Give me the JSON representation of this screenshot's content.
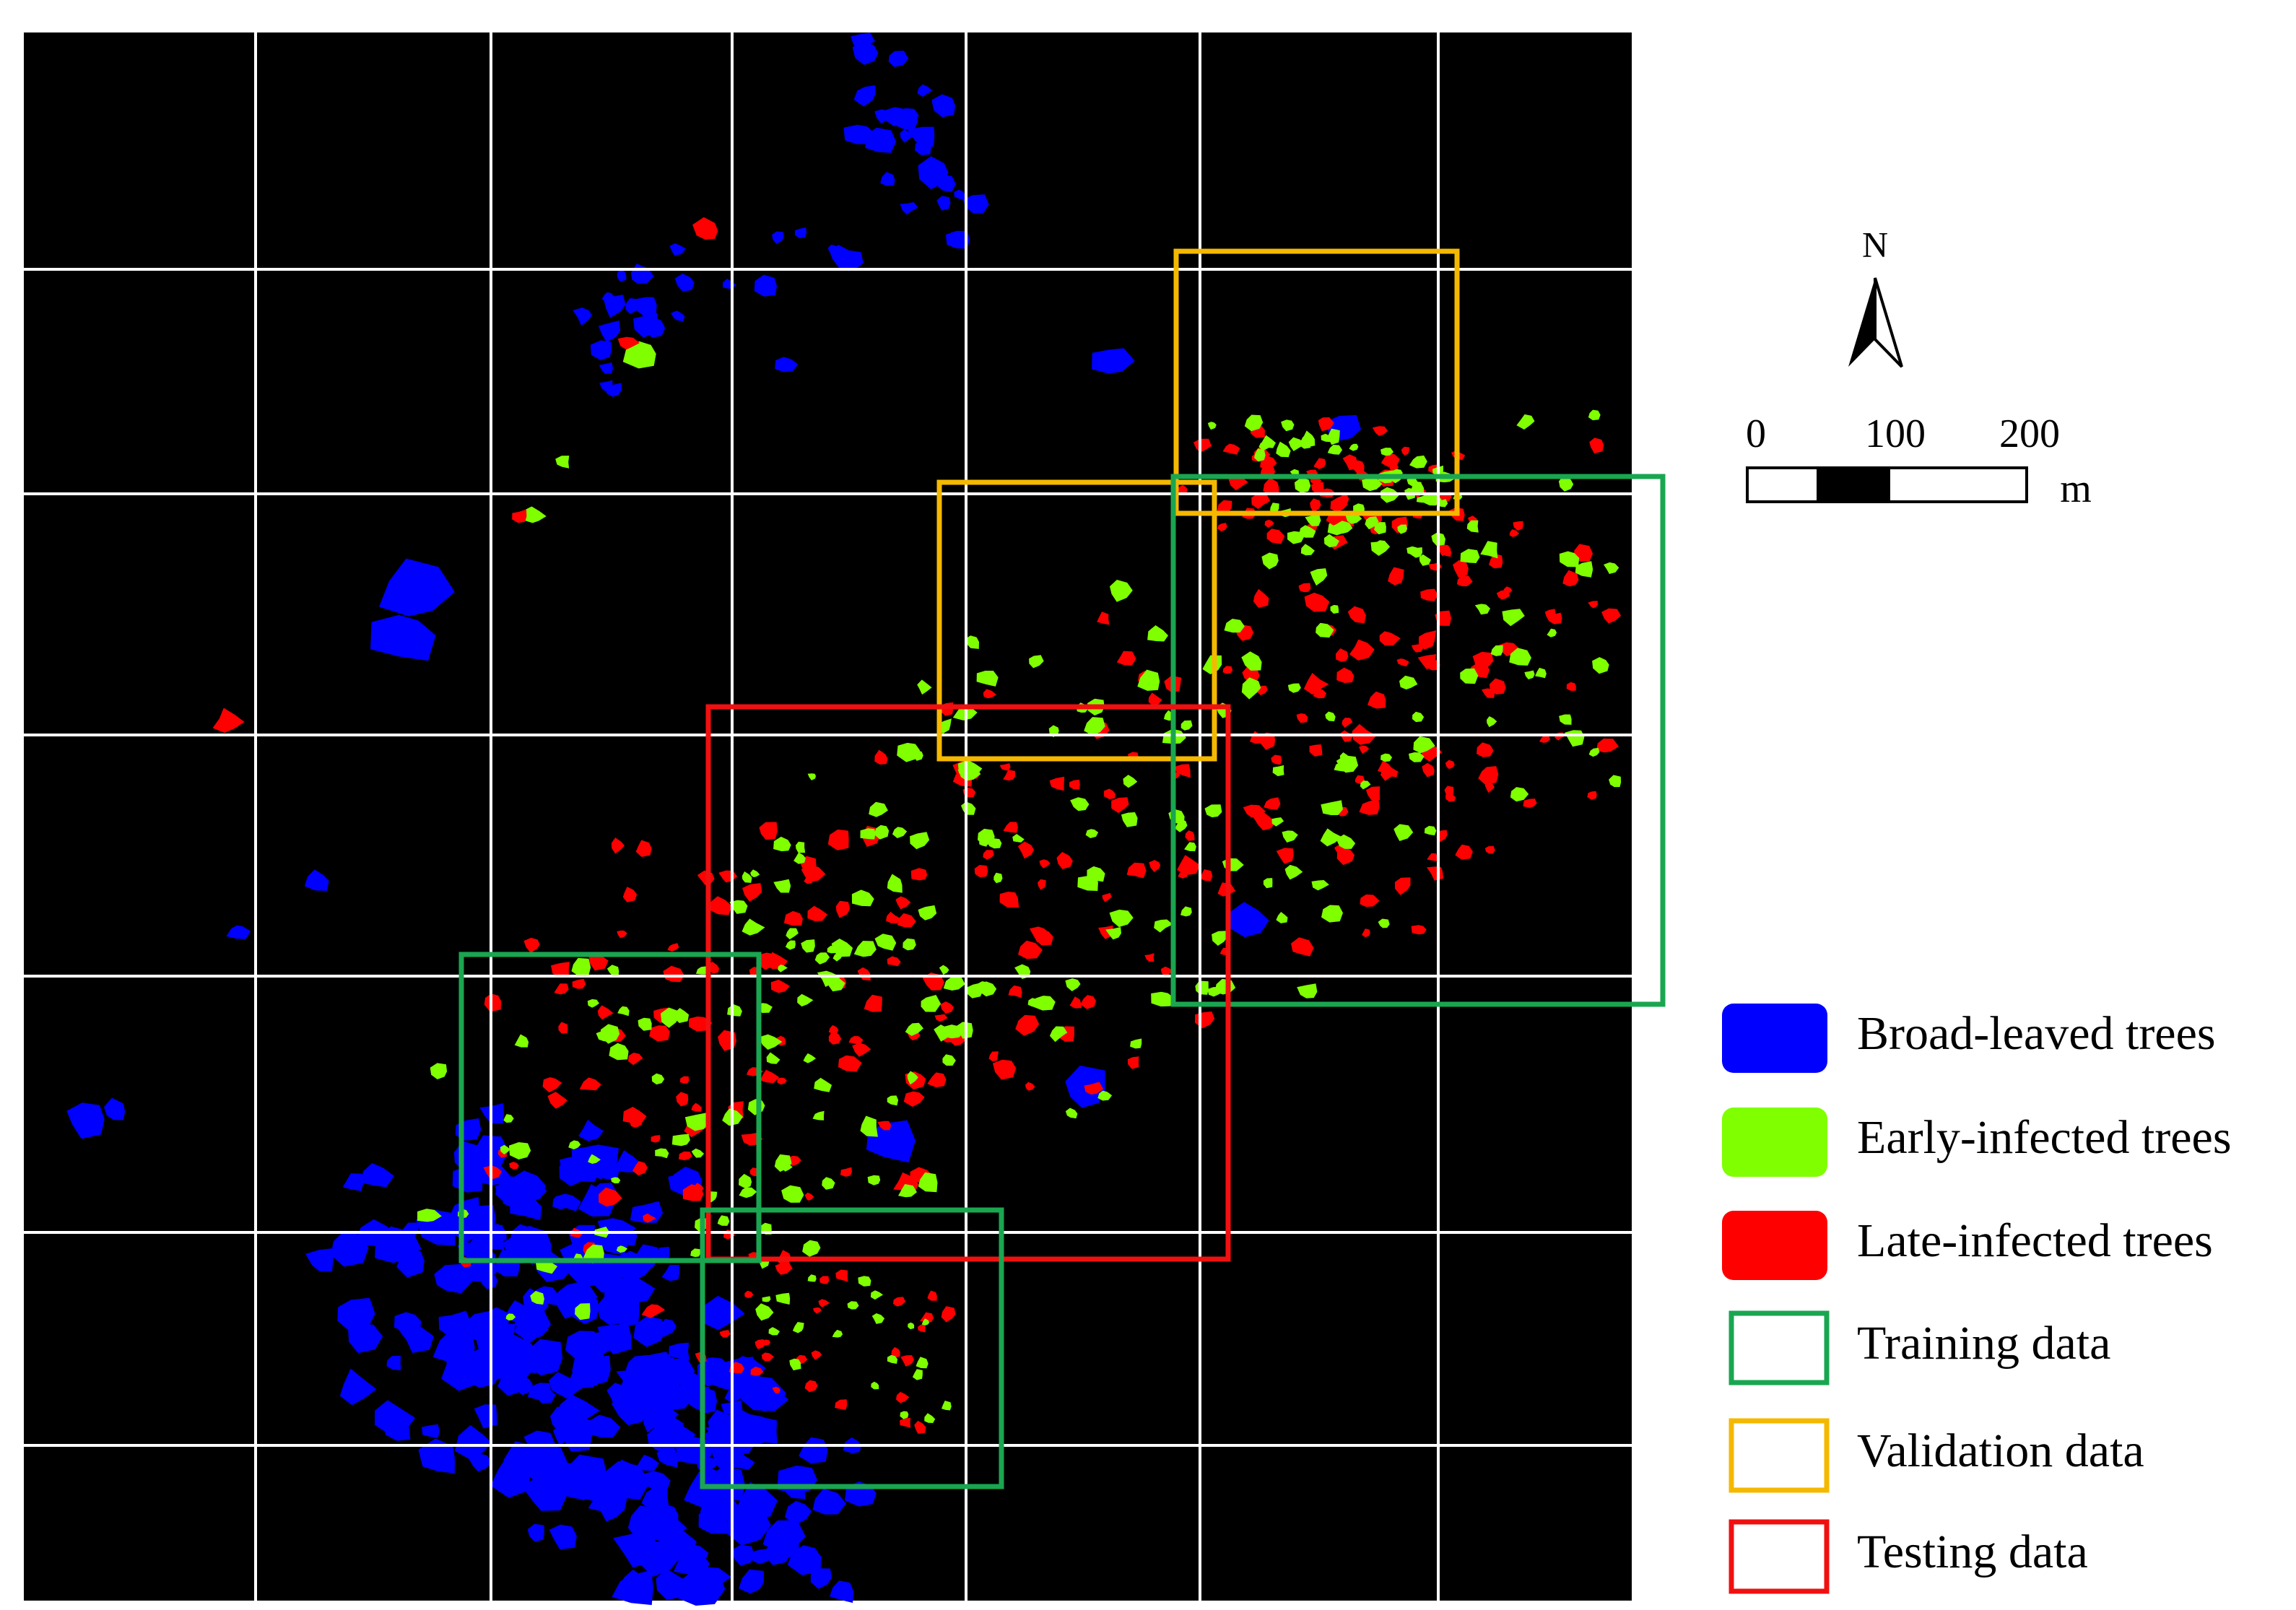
{
  "north_arrow": {
    "label": "N"
  },
  "scale_bar": {
    "labels": [
      "0",
      "100",
      "200"
    ],
    "unit": "m"
  },
  "legend": {
    "items": [
      {
        "label": "Broad-leaved trees"
      },
      {
        "label": "Early-infected trees"
      },
      {
        "label": "Late-infected trees"
      },
      {
        "label": "Training data"
      },
      {
        "label": "Validation data"
      },
      {
        "label": "Testing data"
      }
    ]
  }
}
